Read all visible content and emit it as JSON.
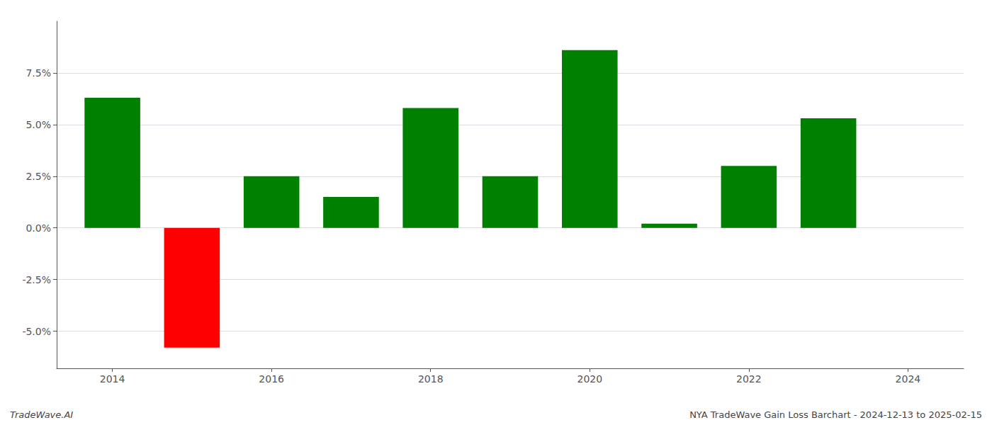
{
  "chart_data": {
    "type": "bar",
    "x": [
      2014,
      2015,
      2016,
      2017,
      2018,
      2019,
      2020,
      2021,
      2022,
      2023
    ],
    "values": [
      0.063,
      -0.058,
      0.025,
      0.015,
      0.058,
      0.025,
      0.086,
      0.002,
      0.03,
      0.053
    ],
    "colors": [
      "#008000",
      "#ff0000",
      "#008000",
      "#008000",
      "#008000",
      "#008000",
      "#008000",
      "#008000",
      "#008000",
      "#008000"
    ],
    "xlim": [
      2013.3,
      2024.7
    ],
    "xticks": [
      2014,
      2016,
      2018,
      2020,
      2022,
      2024
    ],
    "ylim": [
      -0.068,
      0.1
    ],
    "yticks": [
      {
        "value": -0.05,
        "label": "-5.0%"
      },
      {
        "value": -0.025,
        "label": "-2.5%"
      },
      {
        "value": 0.0,
        "label": "0.0%"
      },
      {
        "value": 0.025,
        "label": "2.5%"
      },
      {
        "value": 0.05,
        "label": "5.0%"
      },
      {
        "value": 0.075,
        "label": "7.5%"
      }
    ],
    "grid": true,
    "annotations": [
      "TradeWave.AI",
      "NYA TradeWave Gain Loss Barchart - 2024-12-13 to 2025-02-15"
    ]
  }
}
